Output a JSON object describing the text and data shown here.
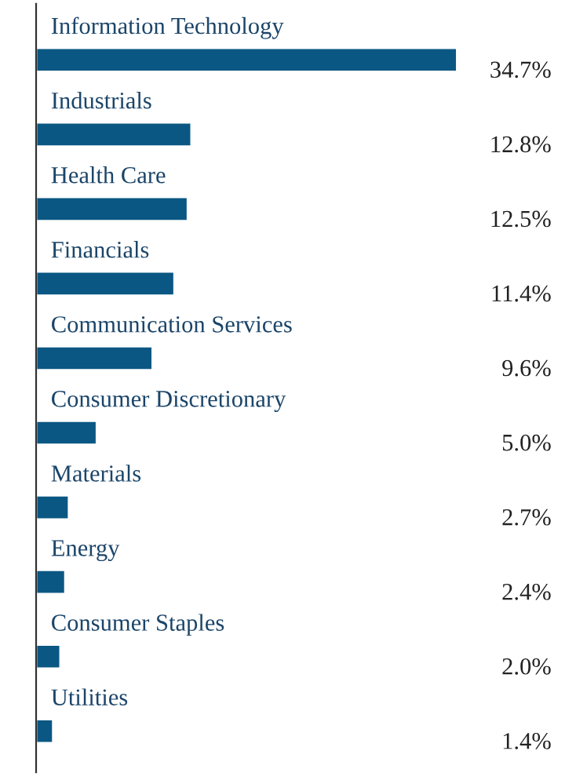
{
  "chart_data": {
    "type": "bar",
    "orientation": "horizontal",
    "categories": [
      "Information Technology",
      "Industrials",
      "Health Care",
      "Financials",
      "Communication Services",
      "Consumer Discretionary",
      "Materials",
      "Energy",
      "Consumer Staples",
      "Utilities"
    ],
    "values": [
      34.7,
      12.8,
      12.5,
      11.4,
      9.6,
      5.0,
      2.7,
      2.4,
      2.0,
      1.4
    ],
    "value_labels": [
      "34.7%",
      "12.8%",
      "12.5%",
      "11.4%",
      "9.6%",
      "5.0%",
      "2.7%",
      "2.4%",
      "2.0%",
      "1.4%"
    ],
    "color": "#0b5783"
  }
}
